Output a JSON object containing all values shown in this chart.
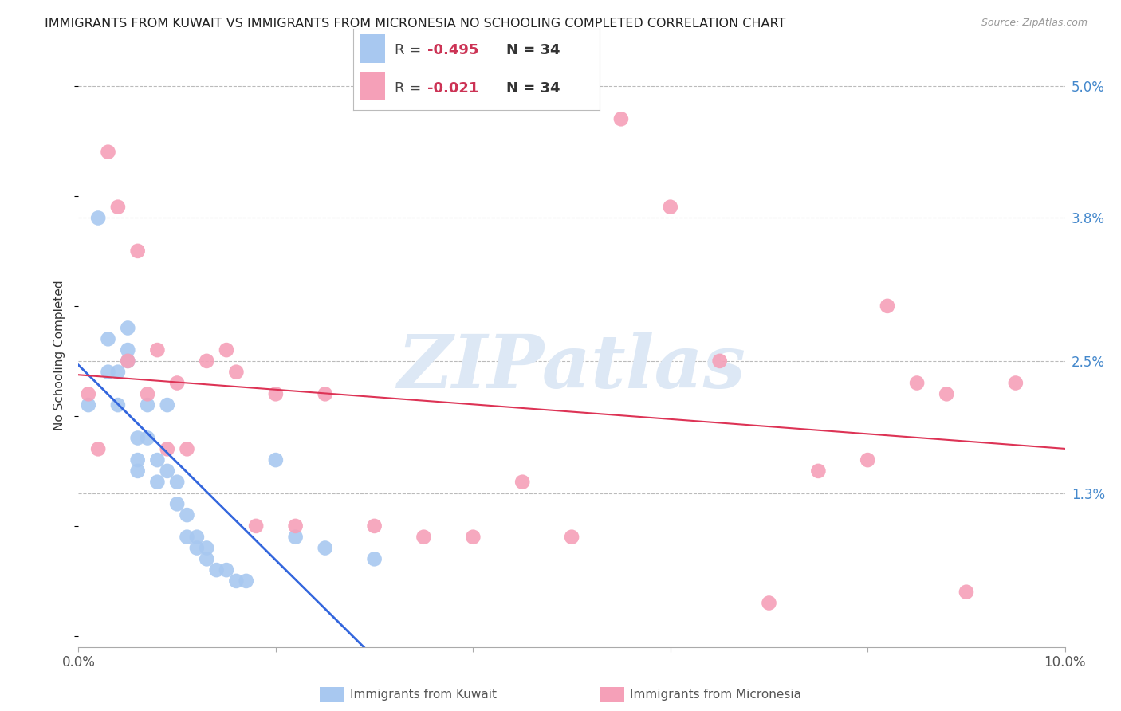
{
  "title": "IMMIGRANTS FROM KUWAIT VS IMMIGRANTS FROM MICRONESIA NO SCHOOLING COMPLETED CORRELATION CHART",
  "source": "Source: ZipAtlas.com",
  "ylabel": "No Schooling Completed",
  "xlim": [
    0.0,
    0.1
  ],
  "ylim": [
    -0.001,
    0.052
  ],
  "xticks": [
    0.0,
    0.02,
    0.04,
    0.06,
    0.08,
    0.1
  ],
  "xticklabels": [
    "0.0%",
    "",
    "",
    "",
    "",
    "10.0%"
  ],
  "ytick_positions": [
    0.013,
    0.025,
    0.038,
    0.05
  ],
  "ytick_labels": [
    "1.3%",
    "2.5%",
    "3.8%",
    "5.0%"
  ],
  "kuwait_color": "#a8c8f0",
  "micronesia_color": "#f5a0b8",
  "kuwait_line_color": "#3366dd",
  "micronesia_line_color": "#dd3355",
  "background_color": "#ffffff",
  "grid_color": "#bbbbbb",
  "watermark_text": "ZIPatlas",
  "watermark_color": "#dde8f5",
  "legend_kuwait_R": "-0.495",
  "legend_kuwait_N": "34",
  "legend_micronesia_R": "-0.021",
  "legend_micronesia_N": "34",
  "kuwait_x": [
    0.001,
    0.002,
    0.003,
    0.003,
    0.004,
    0.004,
    0.005,
    0.005,
    0.005,
    0.006,
    0.006,
    0.006,
    0.007,
    0.007,
    0.008,
    0.008,
    0.009,
    0.009,
    0.01,
    0.01,
    0.011,
    0.011,
    0.012,
    0.012,
    0.013,
    0.013,
    0.014,
    0.015,
    0.016,
    0.017,
    0.02,
    0.022,
    0.025,
    0.03
  ],
  "kuwait_y": [
    0.021,
    0.038,
    0.027,
    0.024,
    0.024,
    0.021,
    0.028,
    0.026,
    0.025,
    0.018,
    0.016,
    0.015,
    0.021,
    0.018,
    0.016,
    0.014,
    0.015,
    0.021,
    0.014,
    0.012,
    0.011,
    0.009,
    0.009,
    0.008,
    0.008,
    0.007,
    0.006,
    0.006,
    0.005,
    0.005,
    0.016,
    0.009,
    0.008,
    0.007
  ],
  "micronesia_x": [
    0.001,
    0.002,
    0.003,
    0.004,
    0.005,
    0.006,
    0.007,
    0.008,
    0.009,
    0.01,
    0.011,
    0.013,
    0.015,
    0.016,
    0.018,
    0.02,
    0.022,
    0.025,
    0.03,
    0.035,
    0.04,
    0.045,
    0.05,
    0.055,
    0.06,
    0.065,
    0.07,
    0.075,
    0.08,
    0.082,
    0.085,
    0.088,
    0.09,
    0.095
  ],
  "micronesia_y": [
    0.022,
    0.017,
    0.044,
    0.039,
    0.025,
    0.035,
    0.022,
    0.026,
    0.017,
    0.023,
    0.017,
    0.025,
    0.026,
    0.024,
    0.01,
    0.022,
    0.01,
    0.022,
    0.01,
    0.009,
    0.009,
    0.014,
    0.009,
    0.047,
    0.039,
    0.025,
    0.003,
    0.015,
    0.016,
    0.03,
    0.023,
    0.022,
    0.004,
    0.023
  ],
  "title_fontsize": 11.5,
  "axis_label_fontsize": 11,
  "tick_fontsize": 12,
  "legend_fontsize": 13,
  "scatter_size": 180
}
